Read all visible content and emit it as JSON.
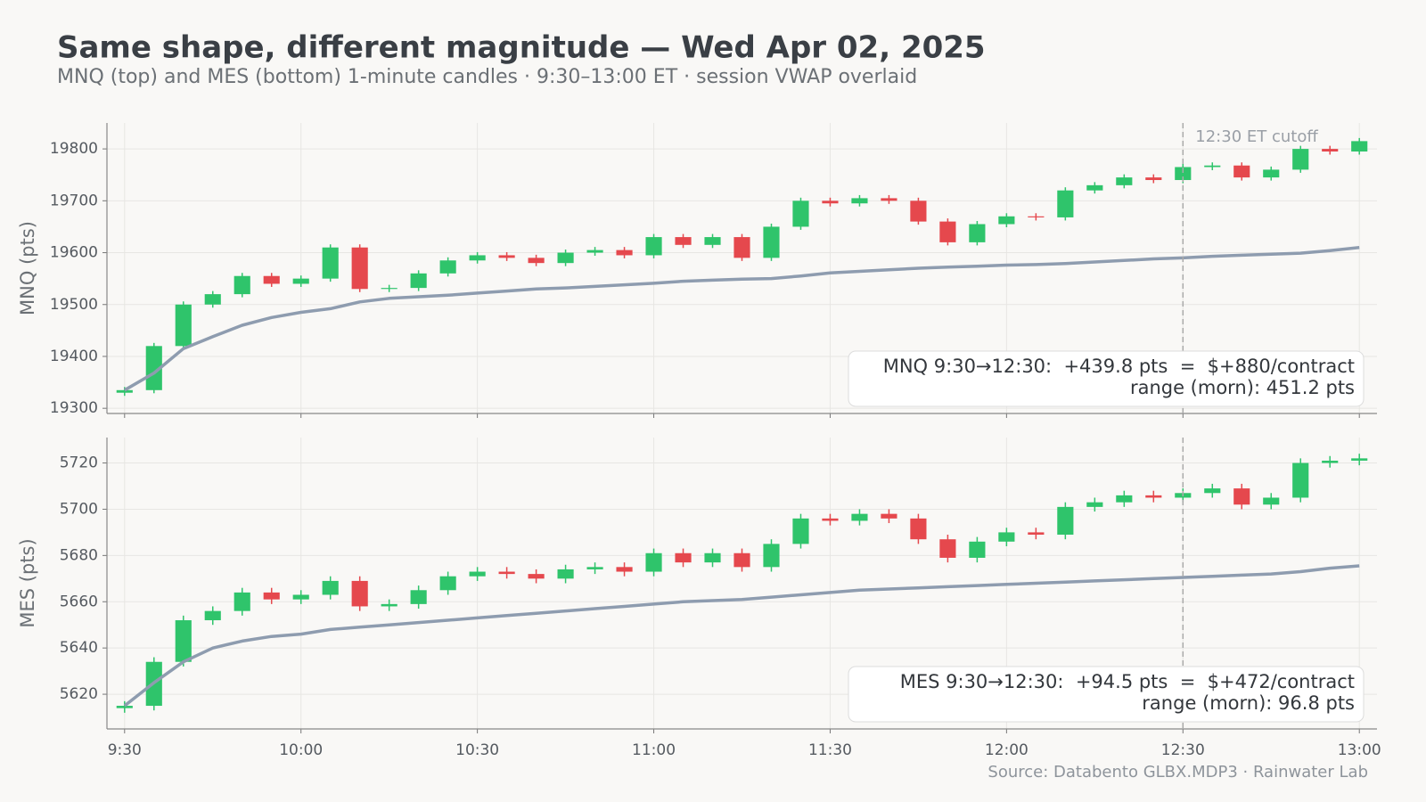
{
  "title": "Same shape, different magnitude — Wed Apr 02, 2025",
  "subtitle": "MNQ (top) and MES (bottom) 1-minute candles · 9:30–13:00 ET · session VWAP overlaid",
  "source": "Source: Databento GLBX.MDP3 · Rainwater Lab",
  "chart_data": [
    {
      "type": "candlestick",
      "ylabel": "MNQ (pts)",
      "x": [
        0,
        5,
        10,
        15,
        20,
        25,
        30,
        35,
        40,
        45,
        50,
        55,
        60,
        65,
        70,
        75,
        80,
        85,
        90,
        95,
        100,
        105,
        110,
        115,
        120,
        125,
        130,
        135,
        140,
        145,
        150,
        155,
        160,
        165,
        170,
        175,
        180,
        185,
        190,
        195,
        200,
        205,
        210
      ],
      "open": [
        19330,
        19335,
        19420,
        19500,
        19520,
        19555,
        19540,
        19550,
        19610,
        19530,
        19532,
        19560,
        19585,
        19595,
        19590,
        19580,
        19600,
        19605,
        19595,
        19630,
        19615,
        19630,
        19590,
        19650,
        19700,
        19695,
        19705,
        19700,
        19660,
        19620,
        19655,
        19670,
        19668,
        19720,
        19730,
        19745,
        19740,
        19765,
        19768,
        19745,
        19760,
        19800,
        19795
      ],
      "high": [
        19341,
        19426,
        19506,
        19526,
        19561,
        19561,
        19556,
        19616,
        19616,
        19538,
        19566,
        19591,
        19601,
        19601,
        19596,
        19606,
        19611,
        19611,
        19636,
        19636,
        19636,
        19636,
        19656,
        19706,
        19706,
        19711,
        19711,
        19706,
        19666,
        19661,
        19676,
        19676,
        19726,
        19736,
        19751,
        19751,
        19771,
        19774,
        19774,
        19766,
        19806,
        19806,
        19821
      ],
      "low": [
        19324,
        19329,
        19414,
        19494,
        19514,
        19534,
        19534,
        19544,
        19524,
        19524,
        19526,
        19554,
        19579,
        19584,
        19574,
        19574,
        19594,
        19589,
        19589,
        19609,
        19609,
        19584,
        19584,
        19644,
        19689,
        19689,
        19694,
        19654,
        19614,
        19614,
        19649,
        19662,
        19662,
        19714,
        19724,
        19734,
        19734,
        19759,
        19739,
        19739,
        19754,
        19789,
        19789
      ],
      "close": [
        19335,
        19420,
        19500,
        19520,
        19555,
        19540,
        19550,
        19610,
        19530,
        19532,
        19560,
        19585,
        19595,
        19590,
        19580,
        19600,
        19605,
        19595,
        19630,
        19615,
        19630,
        19590,
        19650,
        19700,
        19695,
        19705,
        19700,
        19660,
        19620,
        19655,
        19670,
        19668,
        19720,
        19730,
        19745,
        19740,
        19765,
        19768,
        19745,
        19760,
        19800,
        19795,
        19815
      ],
      "vwap_values": [
        19335,
        19368,
        19415,
        19438,
        19460,
        19475,
        19485,
        19492,
        19505,
        19512,
        19515,
        19518,
        19522,
        19526,
        19530,
        19532,
        19535,
        19538,
        19541,
        19545,
        19547,
        19549,
        19550,
        19555,
        19561,
        19564,
        19567,
        19570,
        19572,
        19574,
        19576,
        19577,
        19579,
        19582,
        19585,
        19588,
        19590,
        19593,
        19595,
        19597,
        19599,
        19604,
        19610
      ],
      "vwap_color": "#8e9caf",
      "up_color": "#2fc46b",
      "down_color": "#e5484d",
      "xlim": [
        -3,
        213
      ],
      "ylim": [
        19290,
        19850
      ],
      "xticks": [
        0,
        30,
        60,
        90,
        120,
        150,
        180,
        210
      ],
      "yticks": [
        19300,
        19400,
        19500,
        19600,
        19700,
        19800
      ],
      "grid": true,
      "cutoff": {
        "x": 180,
        "label": "12:30 ET cutoff"
      },
      "annotation": [
        "MNQ 9:30→12:30:  +439.8 pts  =  $+880/contract",
        "range (morn): 451.2 pts"
      ]
    },
    {
      "type": "candlestick",
      "ylabel": "MES (pts)",
      "x": [
        0,
        5,
        10,
        15,
        20,
        25,
        30,
        35,
        40,
        45,
        50,
        55,
        60,
        65,
        70,
        75,
        80,
        85,
        90,
        95,
        100,
        105,
        110,
        115,
        120,
        125,
        130,
        135,
        140,
        145,
        150,
        155,
        160,
        165,
        170,
        175,
        180,
        185,
        190,
        195,
        200,
        205,
        210
      ],
      "open": [
        5614,
        5615,
        5634,
        5652,
        5656,
        5664,
        5661,
        5663,
        5669,
        5658,
        5659,
        5665,
        5671,
        5673,
        5672,
        5670,
        5674,
        5675,
        5673,
        5681,
        5677,
        5681,
        5675,
        5685,
        5696,
        5695,
        5698,
        5696,
        5687,
        5679,
        5686,
        5690,
        5689,
        5701,
        5703,
        5706,
        5705,
        5707,
        5709,
        5702,
        5705,
        5720,
        5721
      ],
      "high": [
        5617,
        5636,
        5654,
        5658,
        5666,
        5666,
        5665,
        5671,
        5671,
        5661,
        5667,
        5673,
        5675,
        5675,
        5674,
        5676,
        5677,
        5677,
        5683,
        5683,
        5683,
        5683,
        5687,
        5698,
        5698,
        5700,
        5700,
        5698,
        5689,
        5688,
        5692,
        5692,
        5703,
        5705,
        5708,
        5708,
        5709,
        5711,
        5711,
        5707,
        5722,
        5723,
        5724
      ],
      "low": [
        5612,
        5613,
        5632,
        5650,
        5654,
        5659,
        5659,
        5661,
        5656,
        5656,
        5657,
        5663,
        5669,
        5670,
        5668,
        5668,
        5672,
        5671,
        5671,
        5675,
        5675,
        5673,
        5673,
        5683,
        5693,
        5693,
        5694,
        5685,
        5677,
        5677,
        5684,
        5687,
        5687,
        5699,
        5701,
        5703,
        5703,
        5705,
        5700,
        5700,
        5703,
        5718,
        5719
      ],
      "close": [
        5615,
        5634,
        5652,
        5656,
        5664,
        5661,
        5663,
        5669,
        5658,
        5659,
        5665,
        5671,
        5673,
        5672,
        5670,
        5674,
        5675,
        5673,
        5681,
        5677,
        5681,
        5675,
        5685,
        5696,
        5695,
        5698,
        5696,
        5687,
        5679,
        5686,
        5690,
        5689,
        5701,
        5703,
        5706,
        5705,
        5707,
        5709,
        5702,
        5705,
        5720,
        5721,
        5722
      ],
      "vwap_values": [
        5615,
        5625,
        5634,
        5640,
        5643,
        5645,
        5646,
        5648,
        5649,
        5650,
        5651,
        5652,
        5653,
        5654,
        5655,
        5656,
        5657,
        5658,
        5659,
        5660,
        5660.5,
        5661,
        5662,
        5663,
        5664,
        5665,
        5665.5,
        5666,
        5666.5,
        5667,
        5667.5,
        5668,
        5668.5,
        5669,
        5669.5,
        5670,
        5670.5,
        5671,
        5671.5,
        5672,
        5673,
        5674.5,
        5675.5
      ],
      "vwap_color": "#8e9caf",
      "up_color": "#2fc46b",
      "down_color": "#e5484d",
      "xlim": [
        -3,
        213
      ],
      "ylim": [
        5605,
        5731
      ],
      "xticks": [
        {
          "value": 0,
          "label": "9:30"
        },
        {
          "value": 30,
          "label": "10:00"
        },
        {
          "value": 60,
          "label": "10:30"
        },
        {
          "value": 90,
          "label": "11:00"
        },
        {
          "value": 120,
          "label": "11:30"
        },
        {
          "value": 150,
          "label": "12:00"
        },
        {
          "value": 180,
          "label": "12:30"
        },
        {
          "value": 210,
          "label": "13:00"
        }
      ],
      "yticks": [
        5620,
        5640,
        5660,
        5680,
        5700,
        5720
      ],
      "grid": true,
      "cutoff": {
        "x": 180
      },
      "annotation": [
        "MES 9:30→12:30:  +94.5 pts  =  $+472/contract",
        "range (morn): 96.8 pts"
      ]
    }
  ]
}
